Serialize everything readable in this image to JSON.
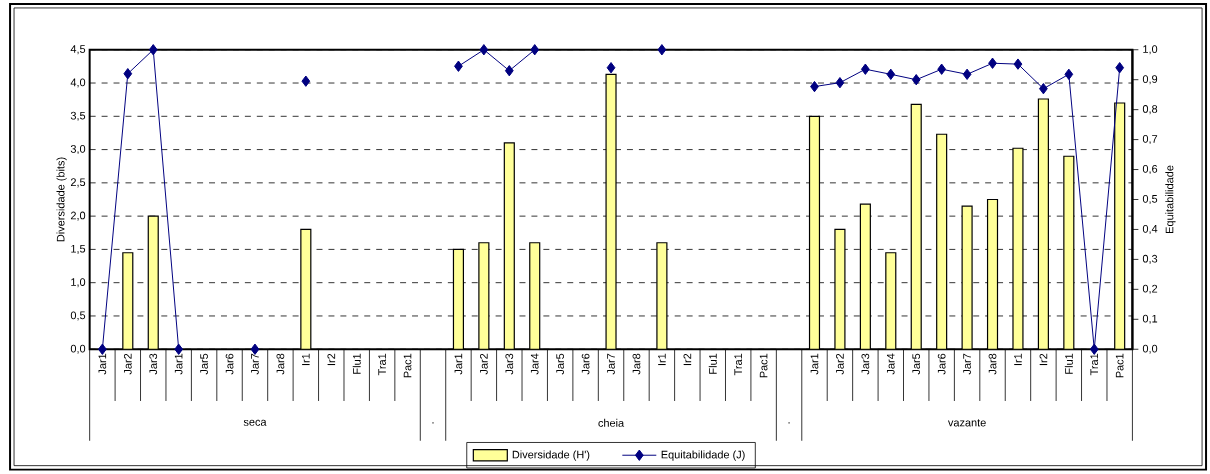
{
  "chart_data": {
    "type": "bar",
    "categories": [
      "Jar1",
      "Jar2",
      "Jar3",
      "Jar1",
      "Jar5",
      "Jar6",
      "Jar7",
      "Jar8",
      "Ir1",
      "Ir2",
      "Flu1",
      "Tra1",
      "Pac1",
      null,
      "Jar1",
      "Jar2",
      "Jar3",
      "Jar4",
      "Jar5",
      "Jar6",
      "Jar7",
      "Jar8",
      "Ir1",
      "Ir2",
      "Flu1",
      "Tra1",
      "Pac1",
      null,
      "Jar1",
      "Jar2",
      "Jar3",
      "Jar4",
      "Jar5",
      "Jar6",
      "Jar7",
      "Jar8",
      "Ir1",
      "Ir2",
      "Flu1",
      "Tra1",
      "Pac1"
    ],
    "series": [
      {
        "name": "Diversidade (H')",
        "type": "bar",
        "color": "#ffff99",
        "values": [
          null,
          1.45,
          2.0,
          null,
          null,
          null,
          null,
          null,
          1.8,
          null,
          null,
          null,
          null,
          null,
          1.5,
          1.6,
          3.1,
          1.6,
          null,
          null,
          4.13,
          null,
          1.6,
          null,
          null,
          null,
          null,
          null,
          3.5,
          1.8,
          2.18,
          1.45,
          3.68,
          3.23,
          2.15,
          2.25,
          3.02,
          3.76,
          2.9,
          null,
          3.7
        ]
      },
      {
        "name": "Equitabilidade (J)",
        "type": "line",
        "axis": "y2",
        "color": "#000080",
        "values": [
          0,
          0.92,
          1.0,
          0,
          null,
          null,
          0,
          null,
          0.895,
          null,
          null,
          null,
          null,
          null,
          0.945,
          1.0,
          0.93,
          1.0,
          null,
          null,
          0.94,
          null,
          1.0,
          null,
          null,
          null,
          null,
          null,
          0.877,
          0.89,
          0.935,
          0.918,
          0.9,
          0.935,
          0.918,
          0.955,
          0.952,
          0.87,
          0.918,
          0,
          0.94
        ]
      }
    ],
    "ylabel": "Diversidade (bits)",
    "y2label": "Equitabilidade",
    "ylim": [
      0,
      4.5
    ],
    "yticks": [
      {
        "value": 0,
        "label": "0,0"
      },
      {
        "value": 0.5,
        "label": "0,5"
      },
      {
        "value": 1,
        "label": "1,0"
      },
      {
        "value": 1.5,
        "label": "1,5"
      },
      {
        "value": 2,
        "label": "2,0"
      },
      {
        "value": 2.5,
        "label": "2,5"
      },
      {
        "value": 3,
        "label": "3,0"
      },
      {
        "value": 3.5,
        "label": "3,5"
      },
      {
        "value": 4,
        "label": "4,0"
      },
      {
        "value": 4.5,
        "label": "4,5"
      }
    ],
    "y2lim": [
      0,
      1.0
    ],
    "y2ticks": [
      {
        "value": 0,
        "label": "0,0"
      },
      {
        "value": 0.1,
        "label": "0,1"
      },
      {
        "value": 0.2,
        "label": "0,2"
      },
      {
        "value": 0.3,
        "label": "0,3"
      },
      {
        "value": 0.4,
        "label": "0,4"
      },
      {
        "value": 0.5,
        "label": "0,5"
      },
      {
        "value": 0.6,
        "label": "0,6"
      },
      {
        "value": 0.7,
        "label": "0,7"
      },
      {
        "value": 0.8,
        "label": "0,8"
      },
      {
        "value": 0.9,
        "label": "0,9"
      },
      {
        "value": 1.0,
        "label": "1,0"
      }
    ],
    "annotations": [
      "seca",
      ".",
      "cheia",
      ".",
      "vazante"
    ],
    "grid": "y",
    "legend": "bottom",
    "marker": "diamond",
    "line_style": "solid"
  }
}
